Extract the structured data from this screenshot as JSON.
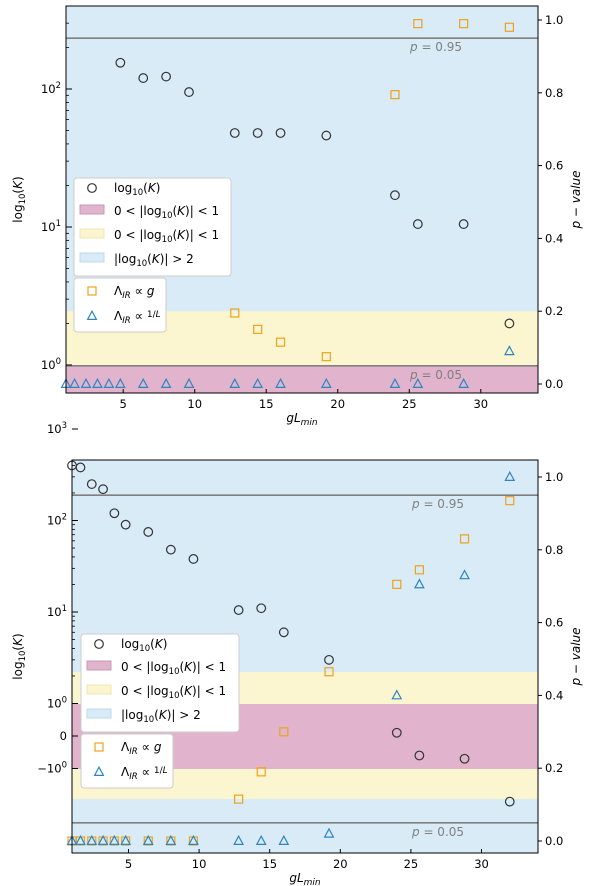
{
  "colors": {
    "pink": "#e1b3cc",
    "yellow": "#fbf5d0",
    "blue": "#d8ebf7",
    "ref_line": "#808080",
    "circle": "#333333",
    "square": "#eea21f",
    "triangle": "#2e86c1"
  },
  "chart_data": [
    {
      "type": "scatter",
      "xlabel": "gL_min",
      "ylabel": "log10(K)",
      "ylabel_right": "p − value",
      "xlim": [
        1,
        34
      ],
      "y_left_scale": "log",
      "y_right_lim": [
        0,
        1
      ],
      "x_ticks": [
        "5",
        "10",
        "15",
        "20",
        "25",
        "30"
      ],
      "y_left_ticks": [
        "10^0",
        "10^1",
        "10^2"
      ],
      "y_right_ticks": [
        "0.0",
        "0.2",
        "0.4",
        "0.6",
        "0.8",
        "1.0"
      ],
      "reference_lines": [
        {
          "label": "p = 0.95",
          "p": 0.95
        },
        {
          "label": "p = 0.05",
          "p": 0.05
        }
      ],
      "bands": [
        {
          "label": "0<|log10(K)|<1",
          "color": "pink",
          "p_range": [
            0,
            0.05
          ]
        },
        {
          "label": "0<|log10(K)|<1",
          "color": "yellow",
          "p_range": [
            0.05,
            0.2
          ]
        },
        {
          "label": "|log10(K)|>2",
          "color": "blue",
          "p_range": [
            0.2,
            1.0
          ]
        }
      ],
      "series": [
        {
          "name": "log10(K)",
          "marker": "circle",
          "axis": "left",
          "x": [
            4.8,
            6.4,
            8.0,
            9.6,
            12.8,
            14.4,
            16.0,
            19.2,
            24.0,
            25.6,
            28.8,
            32.0
          ],
          "y": [
            155,
            120,
            123,
            95,
            48,
            48,
            48,
            46,
            17,
            10.5,
            10.5,
            2.0
          ]
        },
        {
          "name": "Λ_IR ∝ g",
          "marker": "square",
          "axis": "right",
          "x": [
            12.8,
            14.4,
            16.0,
            19.2,
            24.0,
            25.6,
            28.8,
            32.0
          ],
          "y": [
            0.195,
            0.15,
            0.115,
            0.075,
            0.795,
            0.99,
            0.99,
            0.98
          ]
        },
        {
          "name": "Λ_IR ∝ 1/L",
          "marker": "triangle",
          "axis": "right",
          "x": [
            1.0,
            1.6,
            2.4,
            3.2,
            4.0,
            4.8,
            6.4,
            8.0,
            9.6,
            12.8,
            14.4,
            16.0,
            19.2,
            24.0,
            25.6,
            28.8,
            32.0
          ],
          "y": [
            0,
            0,
            0,
            0,
            0,
            0,
            0,
            0,
            0,
            0,
            0,
            0,
            0,
            0,
            0,
            0,
            0.09
          ]
        }
      ]
    },
    {
      "type": "scatter",
      "xlabel": "gL_min",
      "ylabel": "log10(K)",
      "ylabel_right": "p − value",
      "xlim": [
        1,
        34
      ],
      "y_left_scale": "symlog",
      "y_right_lim": [
        0,
        1
      ],
      "x_ticks": [
        "5",
        "10",
        "15",
        "20",
        "25",
        "30"
      ],
      "y_left_ticks": [
        "−10^0",
        "0",
        "10^0",
        "10^1",
        "10^2",
        "10^3"
      ],
      "y_right_ticks": [
        "0.0",
        "0.2",
        "0.4",
        "0.6",
        "0.8",
        "1.0"
      ],
      "reference_lines": [
        {
          "label": "p = 0.95",
          "p": 0.95
        },
        {
          "label": "p = 0.05",
          "p": 0.05
        }
      ],
      "bands": [
        {
          "label": "0<|log10(K)|<1",
          "color": "pink",
          "k_range": [
            -1,
            1
          ]
        },
        {
          "label": "0<|log10(K)|<1",
          "color": "yellow",
          "k_range": [
            -2,
            2
          ]
        },
        {
          "label": "|log10(K)|>2",
          "color": "blue",
          "k_range": "outside"
        }
      ],
      "series": [
        {
          "name": "log10(K)",
          "marker": "circle",
          "axis": "left",
          "x": [
            1.0,
            1.6,
            2.4,
            3.2,
            4.0,
            4.8,
            6.4,
            8.0,
            9.6,
            12.8,
            14.4,
            16.0,
            19.2,
            24.0,
            25.6,
            28.8,
            32.0
          ],
          "y": [
            400,
            380,
            250,
            220,
            120,
            90,
            75,
            48,
            38,
            10.5,
            11,
            6,
            3,
            0.1,
            -0.6,
            -0.7,
            -2.3
          ]
        },
        {
          "name": "Λ_IR ∝ g",
          "marker": "square",
          "axis": "right",
          "x": [
            1.0,
            1.6,
            2.4,
            3.2,
            4.0,
            4.8,
            6.4,
            8.0,
            9.6,
            12.8,
            14.4,
            16.0,
            19.2,
            24.0,
            25.6,
            28.8,
            32.0
          ],
          "y": [
            0,
            0,
            0,
            0,
            0,
            0,
            0,
            0,
            0,
            0.115,
            0.19,
            0.3,
            0.465,
            0.705,
            0.745,
            0.83,
            0.935
          ]
        },
        {
          "name": "Λ_IR ∝ 1/L",
          "marker": "triangle",
          "axis": "right",
          "x": [
            1.0,
            1.6,
            2.4,
            3.2,
            4.0,
            4.8,
            6.4,
            8.0,
            9.6,
            12.8,
            14.4,
            16.0,
            19.2,
            24.0,
            25.6,
            28.8,
            32.0
          ],
          "y": [
            0,
            0,
            0,
            0,
            0,
            0,
            0,
            0,
            0,
            0,
            0,
            0,
            0.02,
            0.4,
            0.705,
            0.73,
            1.0
          ]
        }
      ]
    }
  ]
}
